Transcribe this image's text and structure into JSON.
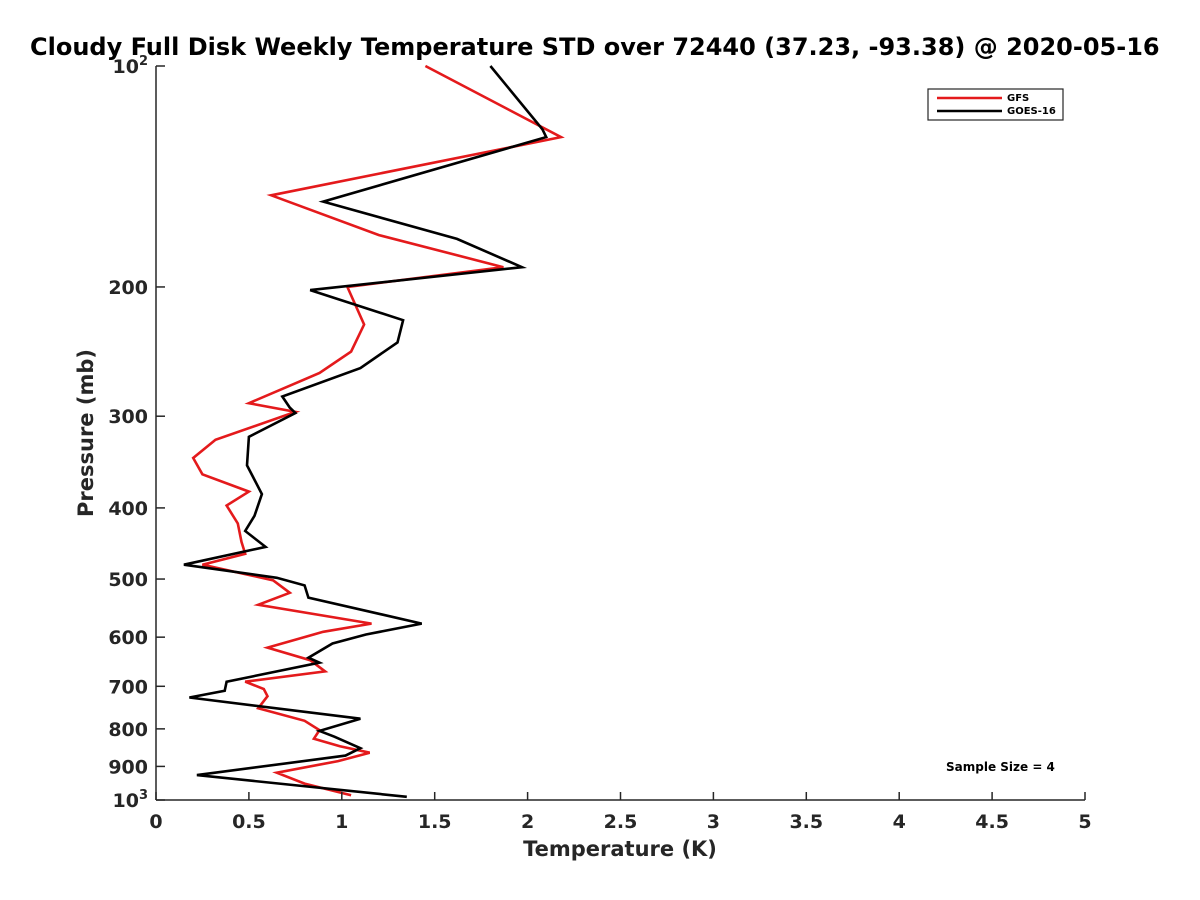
{
  "chart_data": {
    "type": "line",
    "title": "Cloudy Full Disk Weekly Temperature STD over 72440 (37.23, -93.38) @ 2020-05-16",
    "xlabel": "Temperature (K)",
    "ylabel": "Pressure (mb)",
    "xlim": [
      0,
      5
    ],
    "ylim": [
      100,
      1000
    ],
    "y_scale": "log",
    "y_reversed": true,
    "grid": false,
    "legend_position": "top-right",
    "x_ticks": [
      0,
      0.5,
      1,
      1.5,
      2,
      2.5,
      3,
      3.5,
      4,
      4.5,
      5
    ],
    "x_tick_labels": [
      "0",
      "0.5",
      "1",
      "1.5",
      "2",
      "2.5",
      "3",
      "3.5",
      "4",
      "4.5",
      "5"
    ],
    "y_ticks": [
      {
        "value": 100,
        "base": "10",
        "exp": "2"
      },
      {
        "value": 200,
        "label": "200"
      },
      {
        "value": 300,
        "label": "300"
      },
      {
        "value": 400,
        "label": "400"
      },
      {
        "value": 500,
        "label": "500"
      },
      {
        "value": 600,
        "label": "600"
      },
      {
        "value": 700,
        "label": "700"
      },
      {
        "value": 800,
        "label": "800"
      },
      {
        "value": 900,
        "label": "900"
      },
      {
        "value": 1000,
        "base": "10",
        "exp": "3"
      }
    ],
    "annotation": "Sample Size = 4",
    "series": [
      {
        "name": "GFS",
        "color": "#e41a1c",
        "points": [
          [
            1.45,
            100
          ],
          [
            2.18,
            125
          ],
          [
            0.62,
            150
          ],
          [
            1.2,
            170
          ],
          [
            1.87,
            188
          ],
          [
            1.03,
            200
          ],
          [
            1.12,
            225
          ],
          [
            1.05,
            245
          ],
          [
            0.88,
            262
          ],
          [
            0.5,
            288
          ],
          [
            0.75,
            296
          ],
          [
            0.32,
            323
          ],
          [
            0.2,
            342
          ],
          [
            0.25,
            360
          ],
          [
            0.5,
            380
          ],
          [
            0.38,
            397
          ],
          [
            0.44,
            420
          ],
          [
            0.46,
            445
          ],
          [
            0.48,
            462
          ],
          [
            0.25,
            478
          ],
          [
            0.63,
            502
          ],
          [
            0.72,
            522
          ],
          [
            0.55,
            542
          ],
          [
            1.16,
            575
          ],
          [
            0.9,
            590
          ],
          [
            0.6,
            620
          ],
          [
            0.83,
            645
          ],
          [
            0.91,
            668
          ],
          [
            0.48,
            690
          ],
          [
            0.58,
            706
          ],
          [
            0.6,
            722
          ],
          [
            0.55,
            750
          ],
          [
            0.8,
            780
          ],
          [
            0.88,
            803
          ],
          [
            0.85,
            825
          ],
          [
            0.99,
            845
          ],
          [
            1.15,
            862
          ],
          [
            0.98,
            885
          ],
          [
            0.65,
            918
          ],
          [
            0.8,
            950
          ],
          [
            1.05,
            985
          ]
        ]
      },
      {
        "name": "GOES-16",
        "color": "#000000",
        "points": [
          [
            1.8,
            100
          ],
          [
            2.08,
            122
          ],
          [
            2.1,
            125
          ],
          [
            0.9,
            153
          ],
          [
            1.62,
            172
          ],
          [
            1.97,
            188
          ],
          [
            0.83,
            202
          ],
          [
            1.33,
            222
          ],
          [
            1.3,
            238
          ],
          [
            1.1,
            258
          ],
          [
            0.68,
            282
          ],
          [
            0.72,
            292
          ],
          [
            0.75,
            297
          ],
          [
            0.5,
            320
          ],
          [
            0.49,
            350
          ],
          [
            0.57,
            383
          ],
          [
            0.53,
            410
          ],
          [
            0.48,
            430
          ],
          [
            0.59,
            452
          ],
          [
            0.15,
            478
          ],
          [
            0.65,
            498
          ],
          [
            0.8,
            510
          ],
          [
            0.82,
            530
          ],
          [
            1.43,
            575
          ],
          [
            1.13,
            595
          ],
          [
            0.95,
            612
          ],
          [
            0.82,
            640
          ],
          [
            0.88,
            650
          ],
          [
            0.38,
            690
          ],
          [
            0.37,
            710
          ],
          [
            0.18,
            725
          ],
          [
            1.1,
            775
          ],
          [
            0.88,
            805
          ],
          [
            0.96,
            820
          ],
          [
            1.1,
            850
          ],
          [
            1.02,
            870
          ],
          [
            0.22,
            925
          ],
          [
            1.35,
            990
          ]
        ]
      }
    ]
  }
}
